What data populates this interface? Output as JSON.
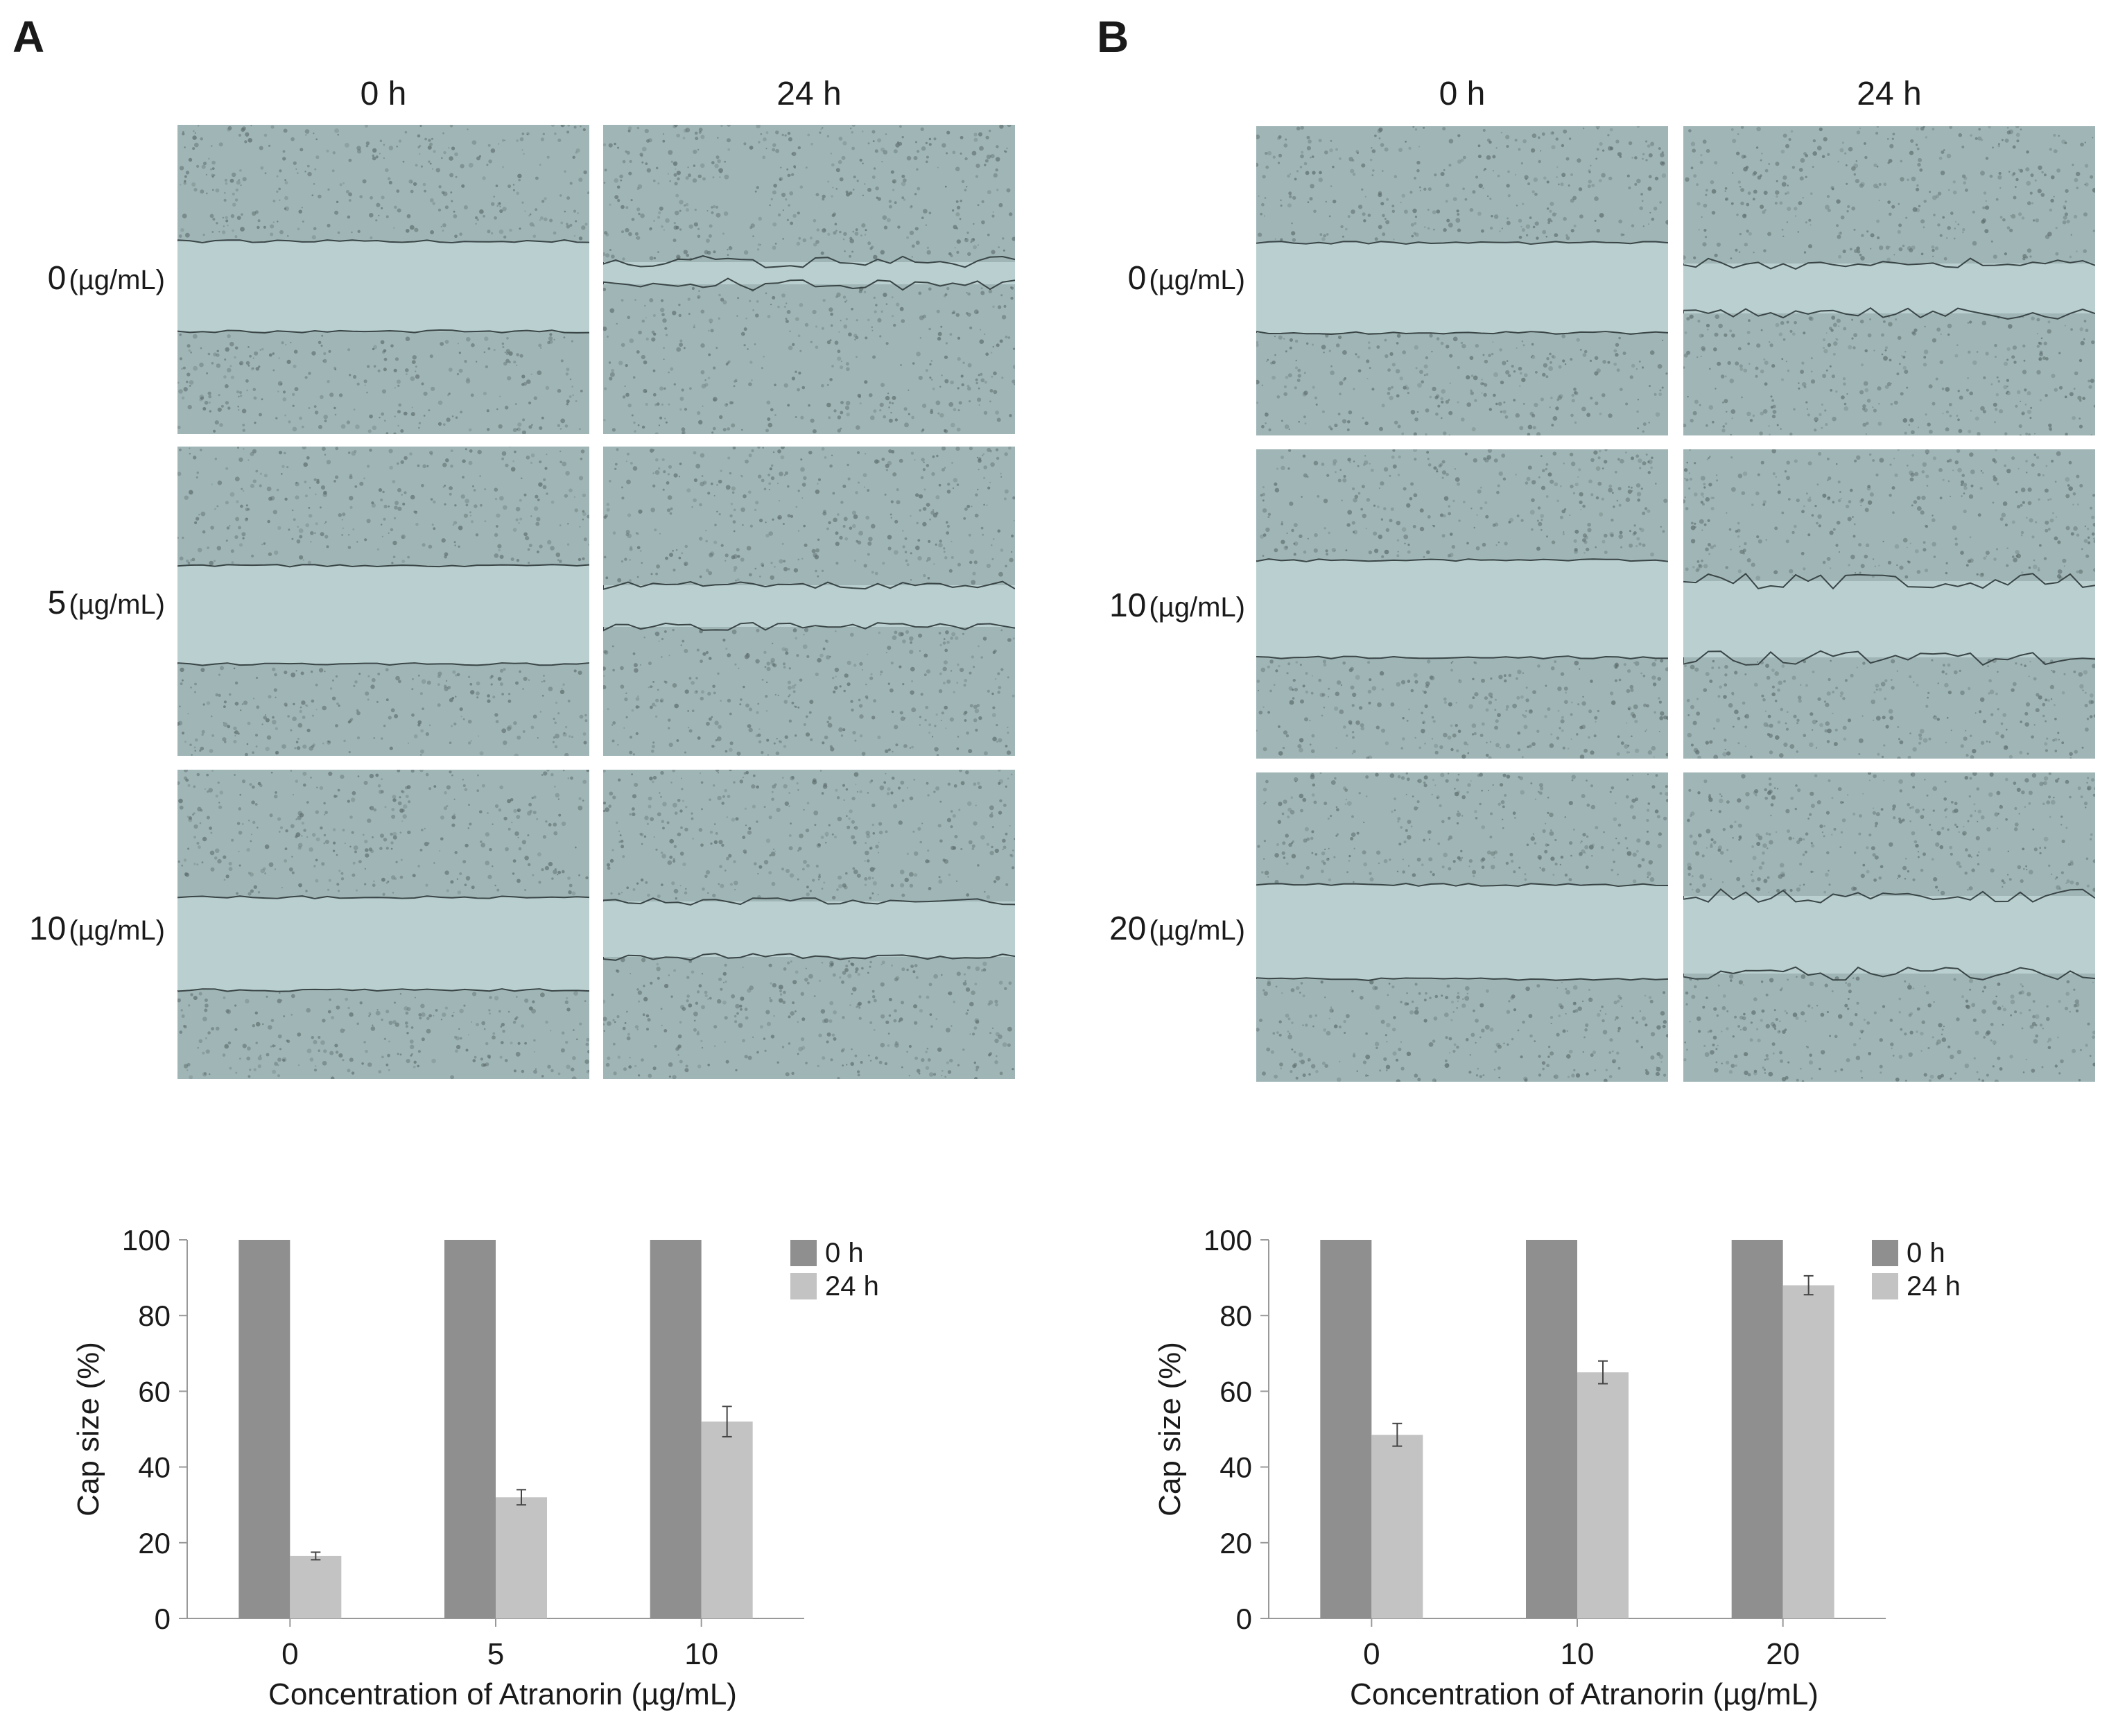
{
  "panels": [
    {
      "letter": "A",
      "time_labels": [
        "0 h",
        "24 h"
      ],
      "rows": [
        {
          "conc": "0",
          "unit": "(µg/mL)"
        },
        {
          "conc": "5",
          "unit": "(µg/mL)"
        },
        {
          "conc": "10",
          "unit": "(µg/mL)"
        }
      ]
    },
    {
      "letter": "B",
      "time_labels": [
        "0 h",
        "24 h"
      ],
      "rows": [
        {
          "conc": "0",
          "unit": "(µg/mL)"
        },
        {
          "conc": "10",
          "unit": "(µg/mL)"
        },
        {
          "conc": "20",
          "unit": "(µg/mL)"
        }
      ]
    }
  ],
  "colors": {
    "bar_0h": "#8f8f8f",
    "bar_24h": "#c3c3c3",
    "image_bg": "#b9cfd0",
    "image_cells": "#5d6b6c"
  },
  "chart_data": [
    {
      "type": "bar",
      "title": "",
      "xlabel": "Concentration of Atranorin (µg/mL)",
      "ylabel": "Cap size (%)",
      "categories": [
        "0",
        "5",
        "10"
      ],
      "series": [
        {
          "name": "0 h",
          "values": [
            100,
            100,
            100
          ]
        },
        {
          "name": "24 h",
          "values": [
            16.5,
            32,
            52
          ],
          "error": [
            1,
            2,
            4
          ]
        }
      ],
      "ylim": [
        0,
        100
      ],
      "yticks": [
        0,
        20,
        40,
        60,
        80,
        100
      ],
      "grid": false,
      "legend": "top-right"
    },
    {
      "type": "bar",
      "title": "",
      "xlabel": "Concentration of Atranorin (µg/mL)",
      "ylabel": "Cap size (%)",
      "categories": [
        "0",
        "10",
        "20"
      ],
      "series": [
        {
          "name": "0 h",
          "values": [
            100,
            100,
            100
          ]
        },
        {
          "name": "24 h",
          "values": [
            48.5,
            65,
            88
          ],
          "error": [
            3,
            3,
            2.5
          ]
        }
      ],
      "ylim": [
        0,
        100
      ],
      "yticks": [
        0,
        20,
        40,
        60,
        80,
        100
      ],
      "grid": false,
      "legend": "top-right"
    }
  ]
}
